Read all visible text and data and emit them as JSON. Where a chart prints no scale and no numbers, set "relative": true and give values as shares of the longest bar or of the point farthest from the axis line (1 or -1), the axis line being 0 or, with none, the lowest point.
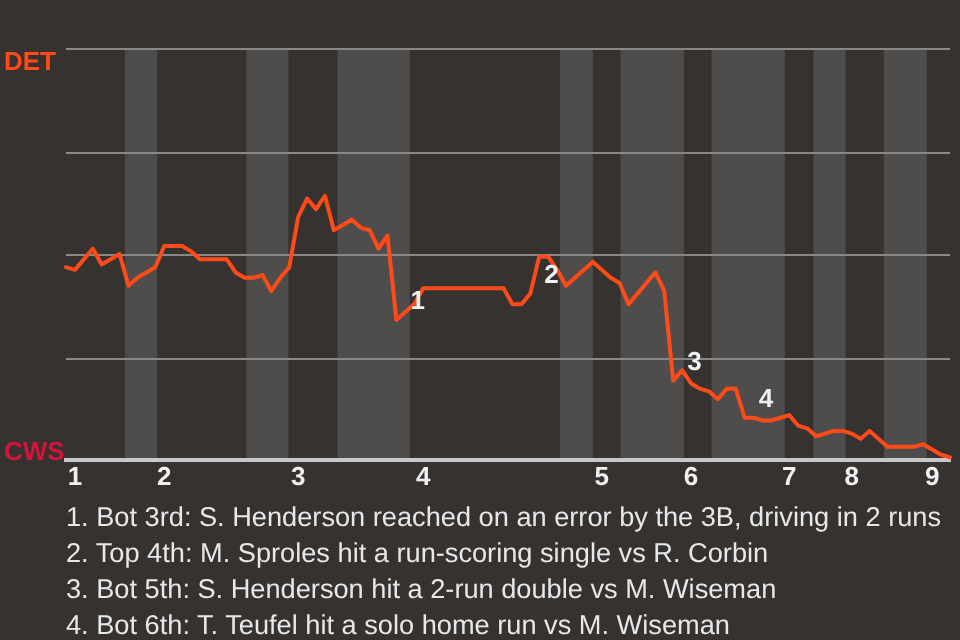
{
  "chart_data": {
    "type": "line",
    "relative": true,
    "categories": [
      null,
      "1",
      null,
      null,
      null,
      null,
      null,
      null,
      null,
      null,
      null,
      "2",
      null,
      null,
      null,
      null,
      null,
      null,
      null,
      null,
      null,
      null,
      null,
      null,
      null,
      null,
      "3",
      null,
      null,
      null,
      null,
      null,
      null,
      null,
      null,
      null,
      null,
      null,
      null,
      null,
      "4",
      null,
      null,
      null,
      null,
      null,
      null,
      null,
      null,
      null,
      null,
      null,
      null,
      null,
      null,
      null,
      null,
      null,
      null,
      null,
      "5",
      null,
      null,
      null,
      null,
      null,
      null,
      null,
      null,
      null,
      "6",
      null,
      null,
      null,
      null,
      null,
      null,
      null,
      null,
      null,
      null,
      "7",
      null,
      null,
      null,
      null,
      null,
      null,
      "8",
      null,
      null,
      null,
      null,
      null,
      null,
      null,
      null,
      "9",
      null,
      null
    ],
    "series": [
      {
        "color": "#ff4a1a",
        "values": [
          0.73,
          0.72,
          0.76,
          0.8,
          0.74,
          0.76,
          0.78,
          0.66,
          0.69,
          0.71,
          0.73,
          0.81,
          0.81,
          0.81,
          0.79,
          0.76,
          0.76,
          0.76,
          0.76,
          0.71,
          0.69,
          0.69,
          0.7,
          0.64,
          0.69,
          0.73,
          0.92,
          0.99,
          0.95,
          1,
          0.87,
          0.89,
          0.91,
          0.88,
          0.87,
          0.8,
          0.85,
          0.53,
          0.56,
          0.59,
          0.65,
          0.65,
          0.65,
          0.65,
          0.65,
          0.65,
          0.65,
          0.65,
          0.65,
          0.65,
          0.59,
          0.59,
          0.63,
          0.77,
          0.77,
          0.72,
          0.66,
          0.69,
          0.72,
          0.75,
          0.72,
          0.69,
          0.67,
          0.59,
          0.63,
          0.67,
          0.71,
          0.64,
          0.3,
          0.34,
          0.29,
          0.27,
          0.26,
          0.23,
          0.27,
          0.27,
          0.16,
          0.16,
          0.15,
          0.15,
          0.16,
          0.17,
          0.13,
          0.12,
          0.09,
          0.1,
          0.11,
          0.11,
          0.1,
          0.08,
          0.11,
          0.08,
          0.05,
          0.05,
          0.05,
          0.05,
          0.06,
          0.04,
          0.02,
          0.01
        ]
      }
    ],
    "legend": false,
    "marker": "none",
    "line_style": "solid",
    "ref_lines": [
      {
        "axis": "y",
        "value": 0.39,
        "color": "#8a8886"
      },
      {
        "axis": "y",
        "value": 0.78,
        "color": "#8a8886"
      },
      {
        "axis": "y",
        "value": 1.17,
        "color": "#8a8886"
      },
      {
        "axis": "y",
        "value": 1.56,
        "color": "#8a8886"
      }
    ],
    "annotations": [
      "DET",
      "CWS",
      "1",
      "2",
      "3",
      "4",
      "1. Bot 3rd: S. Henderson reached on an error by the 3B, driving in 2 runs",
      "2. Top 4th: M. Sproles hit a run-scoring single vs R. Corbin",
      "3. Bot 5th: S. Henderson hit a 2-run double vs M. Wiseman",
      "4. Bot 6th: T. Teufel hit a solo home run vs M. Wiseman"
    ]
  }
}
